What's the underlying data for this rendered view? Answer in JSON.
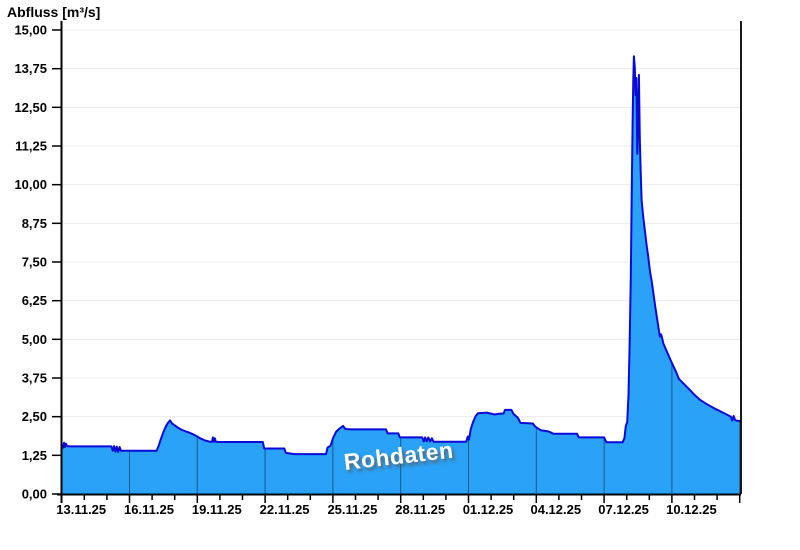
{
  "window": {
    "title": "Abfluss [m³/s]"
  },
  "watermark": {
    "text": "Rohdaten"
  },
  "chart_data": {
    "type": "area",
    "title": "Abfluss [m³/s]",
    "xlabel": "",
    "ylabel": "Abfluss [m³/s]",
    "unit": "m³/s",
    "decimal_separator": ",",
    "ylim": [
      0,
      15
    ],
    "y_tick_step": 1.25,
    "y_tick_labels": [
      "0,00",
      "1,25",
      "2,50",
      "3,75",
      "5,00",
      "6,25",
      "7,50",
      "8,75",
      "10,00",
      "11,25",
      "12,50",
      "13,75",
      "15,00"
    ],
    "x_tick_labels": [
      "13.11.25",
      "16.11.25",
      "19.11.25",
      "22.11.25",
      "25.11.25",
      "28.11.25",
      "01.12.25",
      "04.12.25",
      "07.12.25",
      "10.12.25"
    ],
    "x_major_tick_interval_days": 3,
    "x_minor_tick_interval_days": 1,
    "x_span_days": 30.05,
    "grid": "horizontal light gray; vertical major gridlines visible only over filled area",
    "legend": "none",
    "colors": {
      "fill": "#29A2F8",
      "line": "#0A0AD8",
      "grid": "#ECECEC",
      "axis": "#000000",
      "vertical_grid_on_area": "rgba(0,0,0,0.45)",
      "background": "#FFFFFF",
      "watermark_text": "#FFFFFF",
      "watermark_shadow": "#707070"
    },
    "series": [
      {
        "name": "Abfluss Rohdaten",
        "x_unit": "days since 13.11.25 00:00",
        "points": [
          [
            0.0,
            1.6
          ],
          [
            0.06,
            1.5
          ],
          [
            0.1,
            1.66
          ],
          [
            0.14,
            1.52
          ],
          [
            0.18,
            1.63
          ],
          [
            0.24,
            1.55
          ],
          [
            0.4,
            1.54
          ],
          [
            2.2,
            1.54
          ],
          [
            2.26,
            1.4
          ],
          [
            2.32,
            1.55
          ],
          [
            2.38,
            1.37
          ],
          [
            2.44,
            1.53
          ],
          [
            2.5,
            1.36
          ],
          [
            2.56,
            1.52
          ],
          [
            2.62,
            1.4
          ],
          [
            4.2,
            1.4
          ],
          [
            4.3,
            1.58
          ],
          [
            4.4,
            1.8
          ],
          [
            4.5,
            2.0
          ],
          [
            4.6,
            2.18
          ],
          [
            4.7,
            2.3
          ],
          [
            4.79,
            2.38
          ],
          [
            4.88,
            2.28
          ],
          [
            5.0,
            2.22
          ],
          [
            5.15,
            2.14
          ],
          [
            5.3,
            2.08
          ],
          [
            5.5,
            2.02
          ],
          [
            5.7,
            1.97
          ],
          [
            5.9,
            1.9
          ],
          [
            6.0,
            1.86
          ],
          [
            6.15,
            1.79
          ],
          [
            6.35,
            1.73
          ],
          [
            6.55,
            1.69
          ],
          [
            6.65,
            1.69
          ],
          [
            6.69,
            1.83
          ],
          [
            6.73,
            1.69
          ],
          [
            6.78,
            1.8
          ],
          [
            6.82,
            1.69
          ],
          [
            7.0,
            1.68
          ],
          [
            8.9,
            1.68
          ],
          [
            8.96,
            1.47
          ],
          [
            9.85,
            1.47
          ],
          [
            9.92,
            1.33
          ],
          [
            10.3,
            1.29
          ],
          [
            11.7,
            1.29
          ],
          [
            11.76,
            1.5
          ],
          [
            11.9,
            1.56
          ],
          [
            12.0,
            1.8
          ],
          [
            12.15,
            2.02
          ],
          [
            12.3,
            2.12
          ],
          [
            12.45,
            2.2
          ],
          [
            12.55,
            2.1
          ],
          [
            12.8,
            2.09
          ],
          [
            14.35,
            2.09
          ],
          [
            14.42,
            1.96
          ],
          [
            14.9,
            1.96
          ],
          [
            14.96,
            1.83
          ],
          [
            15.95,
            1.83
          ],
          [
            16.02,
            1.7
          ],
          [
            16.08,
            1.83
          ],
          [
            16.15,
            1.7
          ],
          [
            16.22,
            1.83
          ],
          [
            16.3,
            1.7
          ],
          [
            16.38,
            1.8
          ],
          [
            16.45,
            1.69
          ],
          [
            17.9,
            1.69
          ],
          [
            17.97,
            1.86
          ],
          [
            18.02,
            1.76
          ],
          [
            18.1,
            2.1
          ],
          [
            18.2,
            2.32
          ],
          [
            18.32,
            2.52
          ],
          [
            18.42,
            2.61
          ],
          [
            18.8,
            2.63
          ],
          [
            19.15,
            2.57
          ],
          [
            19.4,
            2.6
          ],
          [
            19.55,
            2.6
          ],
          [
            19.62,
            2.72
          ],
          [
            19.9,
            2.72
          ],
          [
            20.0,
            2.58
          ],
          [
            20.18,
            2.47
          ],
          [
            20.3,
            2.3
          ],
          [
            20.85,
            2.28
          ],
          [
            20.95,
            2.18
          ],
          [
            21.2,
            2.06
          ],
          [
            21.55,
            2.02
          ],
          [
            21.75,
            1.95
          ],
          [
            22.8,
            1.95
          ],
          [
            22.88,
            1.83
          ],
          [
            24.0,
            1.83
          ],
          [
            24.1,
            1.67
          ],
          [
            24.82,
            1.67
          ],
          [
            24.9,
            1.8
          ],
          [
            24.96,
            2.2
          ],
          [
            25.02,
            2.32
          ],
          [
            25.08,
            3.2
          ],
          [
            25.13,
            4.8
          ],
          [
            25.18,
            7.0
          ],
          [
            25.22,
            9.6
          ],
          [
            25.26,
            12.0
          ],
          [
            25.29,
            13.4
          ],
          [
            25.32,
            14.15
          ],
          [
            25.36,
            13.8
          ],
          [
            25.39,
            12.9
          ],
          [
            25.43,
            13.45
          ],
          [
            25.47,
            11.0
          ],
          [
            25.5,
            11.8
          ],
          [
            25.54,
            13.55
          ],
          [
            25.58,
            11.5
          ],
          [
            25.62,
            10.4
          ],
          [
            25.66,
            9.5
          ],
          [
            25.73,
            8.96
          ],
          [
            25.81,
            8.48
          ],
          [
            25.88,
            8.05
          ],
          [
            25.96,
            7.63
          ],
          [
            26.03,
            7.19
          ],
          [
            26.11,
            6.86
          ],
          [
            26.18,
            6.49
          ],
          [
            26.25,
            6.11
          ],
          [
            26.33,
            5.73
          ],
          [
            26.4,
            5.41
          ],
          [
            26.47,
            5.09
          ],
          [
            26.52,
            5.16
          ],
          [
            26.58,
            5.0
          ],
          [
            26.62,
            4.87
          ],
          [
            26.78,
            4.6
          ],
          [
            26.96,
            4.3
          ],
          [
            27.18,
            3.95
          ],
          [
            27.31,
            3.72
          ],
          [
            27.58,
            3.52
          ],
          [
            27.8,
            3.36
          ],
          [
            27.98,
            3.22
          ],
          [
            28.24,
            3.05
          ],
          [
            28.55,
            2.9
          ],
          [
            28.95,
            2.74
          ],
          [
            29.35,
            2.6
          ],
          [
            29.61,
            2.5
          ],
          [
            29.67,
            2.38
          ],
          [
            29.73,
            2.52
          ],
          [
            29.79,
            2.4
          ],
          [
            29.88,
            2.37
          ],
          [
            30.05,
            2.36
          ]
        ]
      }
    ]
  }
}
